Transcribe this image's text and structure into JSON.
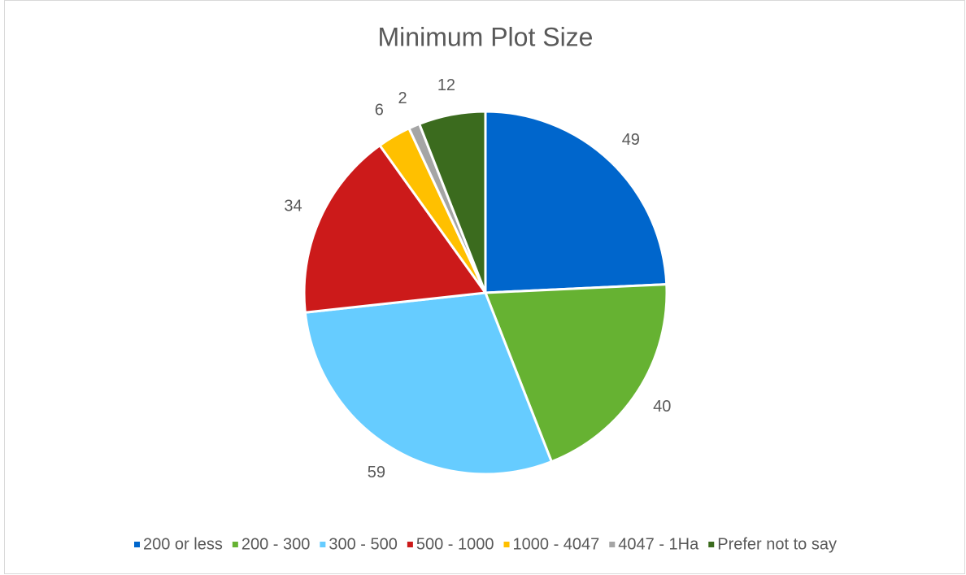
{
  "chart_data": {
    "type": "pie",
    "title": "Minimum Plot Size",
    "categories": [
      "200 or less",
      "200 - 300",
      "300 - 500",
      "500 - 1000",
      "1000 - 4047",
      "4047 - 1Ha",
      "Prefer not to say"
    ],
    "values": [
      49,
      40,
      59,
      34,
      6,
      2,
      12
    ],
    "colors": [
      "#0066cc",
      "#66b232",
      "#66ccff",
      "#cc1a1a",
      "#ffc000",
      "#a5a5a5",
      "#3b6b1e"
    ],
    "legend": "bottom"
  }
}
